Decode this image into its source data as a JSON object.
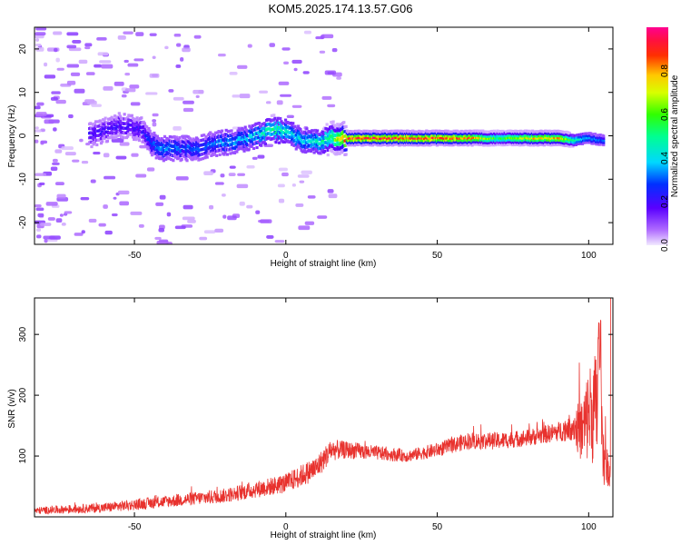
{
  "title": "KOM5.2025.174.13.57.G06",
  "colors": {
    "snr_line": "#e8322e",
    "ridge_high": "#ff1a1a",
    "spectrum_low": "#c9a6ff"
  },
  "chart_data": [
    {
      "type": "heatmap",
      "xlabel": "Height of straight line (km)",
      "ylabel": "Frequency (Hz)",
      "xlim": [
        -83,
        108
      ],
      "ylim": [
        -25,
        25
      ],
      "xticks": [
        -50,
        0,
        50,
        100
      ],
      "yticks": [
        -20,
        -10,
        0,
        10,
        20
      ],
      "colorbar": {
        "label": "Normalized spectral amplitude",
        "range": [
          0.0,
          1.0
        ],
        "ticks": [
          "0.0",
          "0.2",
          "0.4",
          "0.6",
          "0.8"
        ],
        "colormap": "rainbow (violet → blue → cyan → green → yellow → red → magenta)"
      },
      "ridge": {
        "x": [
          -65,
          -55,
          -48,
          -44,
          -40,
          -35,
          -30,
          -25,
          -20,
          -15,
          -10,
          -5,
          0,
          5,
          10,
          15,
          20,
          30,
          40,
          50,
          60,
          70,
          80,
          90,
          95,
          100,
          105
        ],
        "y": [
          0,
          2.5,
          1.5,
          -2,
          -3,
          -3,
          -3,
          -2,
          -1.5,
          -1,
          0,
          1.5,
          1,
          -1,
          -1.5,
          -0.5,
          -0.5,
          -0.5,
          -0.5,
          -0.5,
          -0.5,
          -0.5,
          -0.5,
          -0.5,
          -1,
          -0.5,
          -1
        ],
        "amplitude": [
          0.2,
          0.2,
          0.2,
          0.3,
          0.35,
          0.3,
          0.3,
          0.3,
          0.35,
          0.35,
          0.4,
          0.5,
          0.45,
          0.4,
          0.45,
          0.55,
          0.9,
          0.9,
          0.9,
          0.9,
          0.85,
          0.55,
          0.75,
          0.8,
          0.5,
          0.35,
          0.3
        ]
      }
    },
    {
      "type": "line",
      "xlabel": "Height of straight line (km)",
      "ylabel": "SNR (v/v)",
      "xlim": [
        -83,
        108
      ],
      "ylim": [
        0,
        360
      ],
      "xticks": [
        -50,
        0,
        50,
        100
      ],
      "yticks": [
        100,
        200,
        300
      ],
      "trend": {
        "x": [
          -83,
          -60,
          -40,
          -20,
          0,
          10,
          15,
          20,
          30,
          40,
          50,
          60,
          70,
          80,
          90,
          95,
          98,
          100,
          103,
          105,
          107
        ],
        "y": [
          10,
          15,
          25,
          35,
          55,
          80,
          110,
          110,
          105,
          100,
          110,
          125,
          125,
          130,
          140,
          150,
          140,
          170,
          180,
          100,
          70
        ]
      },
      "noise_amp": [
        6,
        8,
        10,
        12,
        16,
        20,
        18,
        14,
        12,
        10,
        12,
        14,
        14,
        14,
        16,
        25,
        60,
        80,
        100,
        50,
        20
      ]
    }
  ]
}
